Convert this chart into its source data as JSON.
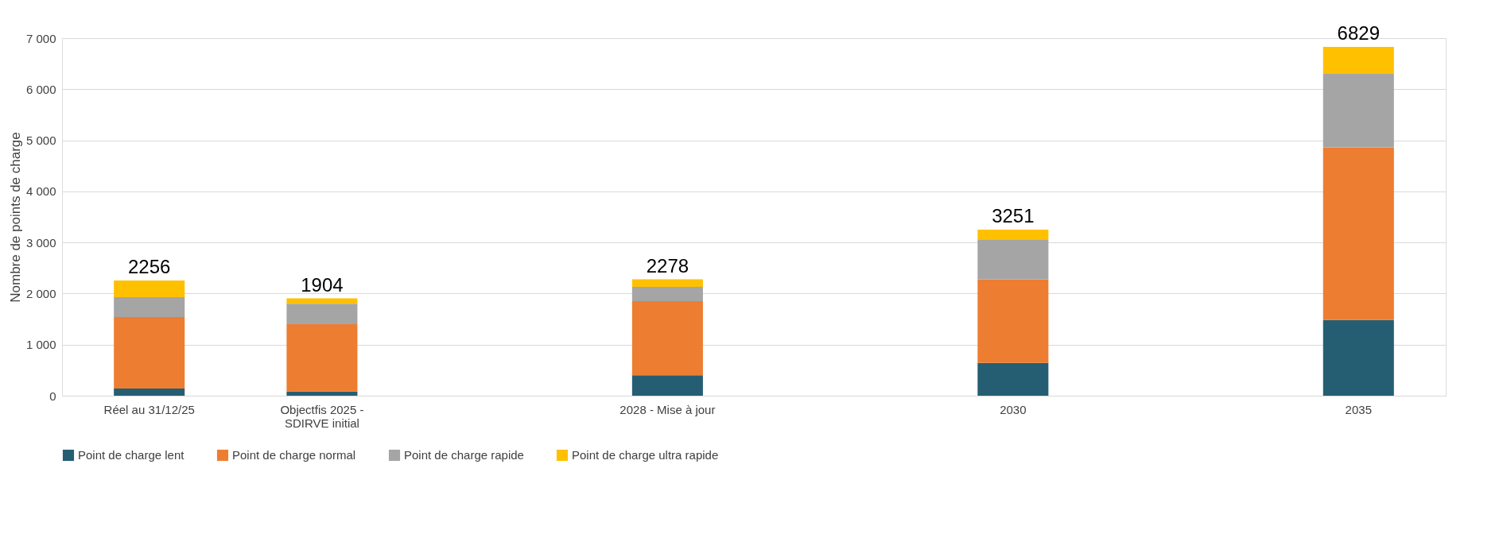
{
  "chart_data": {
    "type": "bar",
    "stacked": true,
    "ylabel": "Nombre de points de charge",
    "categories": [
      "Réel au 31/12/25",
      "Objectfis 2025 - SDIRVE initial",
      null,
      "2028 - Mise à jour",
      null,
      "2030",
      null,
      "2035"
    ],
    "series": [
      {
        "name": "Point de charge lent",
        "color": "#255e73",
        "values": [
          140,
          80,
          null,
          400,
          null,
          640,
          null,
          1480
        ]
      },
      {
        "name": "Point de charge normal",
        "color": "#ed7d31",
        "values": [
          1400,
          1320,
          null,
          1450,
          null,
          1640,
          null,
          3380
        ]
      },
      {
        "name": "Point de charge rapide",
        "color": "#a5a5a5",
        "values": [
          390,
          400,
          null,
          280,
          null,
          780,
          null,
          1440
        ]
      },
      {
        "name": "Point de charge ultra rapide",
        "color": "#ffc000",
        "values": [
          326,
          104,
          null,
          148,
          null,
          191,
          null,
          529
        ]
      }
    ],
    "totals": [
      "2256",
      "1904",
      null,
      "2278",
      null,
      "3251",
      null,
      "6829"
    ],
    "ylim": [
      0,
      7000
    ],
    "yticks": [
      0,
      {
        "value": 1000,
        "label": "1 000"
      },
      {
        "value": 2000,
        "label": "2 000"
      },
      {
        "value": 3000,
        "label": "3 000"
      },
      {
        "value": 4000,
        "label": "4 000"
      },
      {
        "value": 5000,
        "label": "5 000"
      },
      {
        "value": 6000,
        "label": "6 000"
      },
      {
        "value": 7000,
        "label": "7 000"
      }
    ],
    "grid": "y",
    "legend": "bottom"
  }
}
